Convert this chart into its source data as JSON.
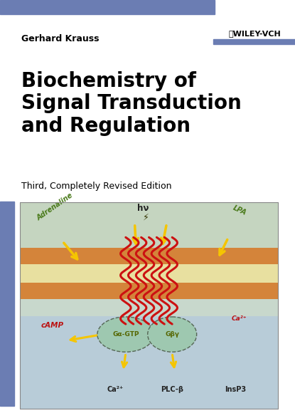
{
  "bg_color": "#ffffff",
  "top_bar_color": "#6b7db3",
  "left_sidebar_color": "#6b7db3",
  "author_name": "Gerhard Krauss",
  "author_fontsize": 9,
  "author_color": "#000000",
  "publisher_fontsize": 8,
  "title_line1": "Biochemistry of",
  "title_line2": "Signal Transduction",
  "title_line3": "and Regulation",
  "title_fontsize": 20,
  "title_color": "#000000",
  "subtitle": "Third, Completely Revised Edition",
  "subtitle_fontsize": 9,
  "subtitle_color": "#000000",
  "membrane_orange": "#D4843A",
  "membrane_yellow": "#e8d890",
  "membrane_bg": "#c8dce0",
  "intra_bg": "#b8d8e8",
  "helix_color": "#cc1111",
  "arrow_yellow": "#f5c500",
  "g_protein_fill": "#b8d4b0",
  "label_green": "#4a7a1a",
  "label_red": "#bb1111",
  "label_dark": "#222222"
}
